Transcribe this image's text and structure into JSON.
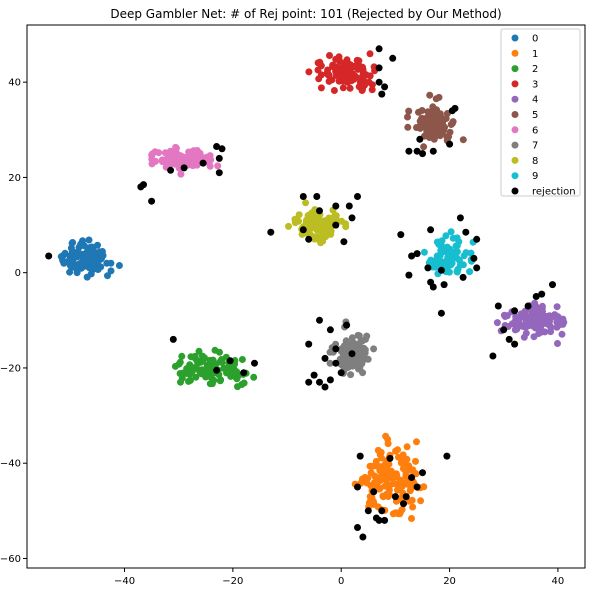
{
  "chart_data": {
    "type": "scatter",
    "title": "Deep Gambler Net: # of Rej point: 101 (Rejected by Our Method)",
    "xlabel": "",
    "ylabel": "",
    "xlim": [
      -58,
      45
    ],
    "ylim": [
      -62,
      52
    ],
    "xticks": [
      -40,
      -20,
      0,
      20,
      40
    ],
    "yticks": [
      -60,
      -40,
      -20,
      0,
      20,
      40
    ],
    "grid": false,
    "legend_position": "top-right",
    "series": [
      {
        "name": "0",
        "color": "#1f77b4",
        "center": [
          -47,
          3
        ],
        "spread": [
          5,
          3.5
        ],
        "count": 110
      },
      {
        "name": "1",
        "color": "#ff7f0e",
        "center": [
          9,
          -44
        ],
        "spread": [
          7,
          8
        ],
        "count": 150
      },
      {
        "name": "2",
        "color": "#2ca02c",
        "center": [
          -24,
          -20
        ],
        "spread": [
          7,
          3.5
        ],
        "count": 110
      },
      {
        "name": "3",
        "color": "#d62728",
        "center": [
          1,
          42
        ],
        "spread": [
          7,
          3.5
        ],
        "count": 110
      },
      {
        "name": "4",
        "color": "#9467bd",
        "center": [
          36,
          -10
        ],
        "spread": [
          6,
          3.5
        ],
        "count": 110
      },
      {
        "name": "5",
        "color": "#8c564b",
        "center": [
          17,
          31
        ],
        "spread": [
          4,
          5
        ],
        "count": 100
      },
      {
        "name": "6",
        "color": "#e377c2",
        "center": [
          -29,
          24
        ],
        "spread": [
          6,
          2.5
        ],
        "count": 100
      },
      {
        "name": "7",
        "color": "#7f7f7f",
        "center": [
          2,
          -17
        ],
        "spread": [
          4.5,
          5
        ],
        "count": 90
      },
      {
        "name": "8",
        "color": "#bcbd22",
        "center": [
          -4,
          10
        ],
        "spread": [
          5,
          4
        ],
        "count": 100
      },
      {
        "name": "9",
        "color": "#17becf",
        "center": [
          20,
          3
        ],
        "spread": [
          4,
          5
        ],
        "count": 80
      },
      {
        "name": "rejection",
        "color": "#000000",
        "points": [
          [
            -54,
            3.5
          ],
          [
            -37,
            18
          ],
          [
            -36.5,
            18.5
          ],
          [
            -35,
            15
          ],
          [
            -23,
            26.5
          ],
          [
            -22,
            26
          ],
          [
            -22.5,
            21
          ],
          [
            -22.5,
            24
          ],
          [
            -31.5,
            21.5
          ],
          [
            -25.5,
            23
          ],
          [
            -29,
            22
          ],
          [
            -31,
            -14
          ],
          [
            -23,
            -20.5
          ],
          [
            -20.5,
            -18.5
          ],
          [
            -16,
            -19
          ],
          [
            -18,
            -21
          ],
          [
            -13,
            8.5
          ],
          [
            -7,
            16
          ],
          [
            -4,
            13
          ],
          [
            -4.5,
            16
          ],
          [
            -7,
            9
          ],
          [
            -1,
            10
          ],
          [
            0.5,
            6.5
          ],
          [
            1.5,
            14
          ],
          [
            3,
            16
          ],
          [
            2,
            11.5
          ],
          [
            -6,
            7
          ],
          [
            -1,
            14
          ],
          [
            -4,
            -10
          ],
          [
            -6,
            -15
          ],
          [
            -2,
            -12
          ],
          [
            -1,
            -16
          ],
          [
            1,
            -11
          ],
          [
            2,
            -17
          ],
          [
            -5,
            -21.5
          ],
          [
            -4,
            -23
          ],
          [
            -2,
            -22.5
          ],
          [
            -3,
            -24
          ],
          [
            0,
            -21
          ],
          [
            -6,
            -23
          ],
          [
            -3,
            -18
          ],
          [
            -1,
            -19
          ],
          [
            7,
            47
          ],
          [
            9.5,
            45
          ],
          [
            7,
            43
          ],
          [
            7.5,
            37.5
          ],
          [
            8,
            39
          ],
          [
            7,
            40
          ],
          [
            17,
            25.5
          ],
          [
            14,
            25.5
          ],
          [
            20,
            27
          ],
          [
            21,
            34.5
          ],
          [
            20.5,
            34
          ],
          [
            12.5,
            25.5
          ],
          [
            14.5,
            28
          ],
          [
            15,
            25
          ],
          [
            11,
            8
          ],
          [
            13,
            3.5
          ],
          [
            14,
            4
          ],
          [
            12.5,
            -0.5
          ],
          [
            16.5,
            -2
          ],
          [
            18.5,
            0.5
          ],
          [
            22.5,
            -1
          ],
          [
            25,
            1
          ],
          [
            23,
            8.5
          ],
          [
            25,
            7
          ],
          [
            18.5,
            -8.5
          ],
          [
            16.5,
            9
          ],
          [
            24.5,
            3
          ],
          [
            22,
            11.5
          ],
          [
            17,
            -3
          ],
          [
            16,
            1
          ],
          [
            19,
            -2.5
          ],
          [
            28,
            -17.5
          ],
          [
            31,
            -14
          ],
          [
            29,
            -7
          ],
          [
            32,
            -8
          ],
          [
            34.5,
            -7
          ],
          [
            36,
            -5
          ],
          [
            39,
            -2.5
          ],
          [
            32,
            -15
          ],
          [
            30,
            -12
          ],
          [
            37,
            -4.5
          ],
          [
            3.5,
            -38.5
          ],
          [
            7,
            -52
          ],
          [
            13,
            -43
          ],
          [
            14,
            -45
          ],
          [
            19.5,
            -38.5
          ],
          [
            11.5,
            -48.5
          ],
          [
            12,
            -47
          ],
          [
            5,
            -50
          ],
          [
            6.5,
            -51.5
          ],
          [
            8,
            -52
          ],
          [
            7.5,
            -50
          ],
          [
            4,
            -55.5
          ],
          [
            3,
            -53.5
          ],
          [
            6,
            -46
          ],
          [
            9,
            -39
          ],
          [
            15,
            -42
          ],
          [
            10,
            -47
          ],
          [
            3,
            -45
          ]
        ]
      }
    ]
  }
}
